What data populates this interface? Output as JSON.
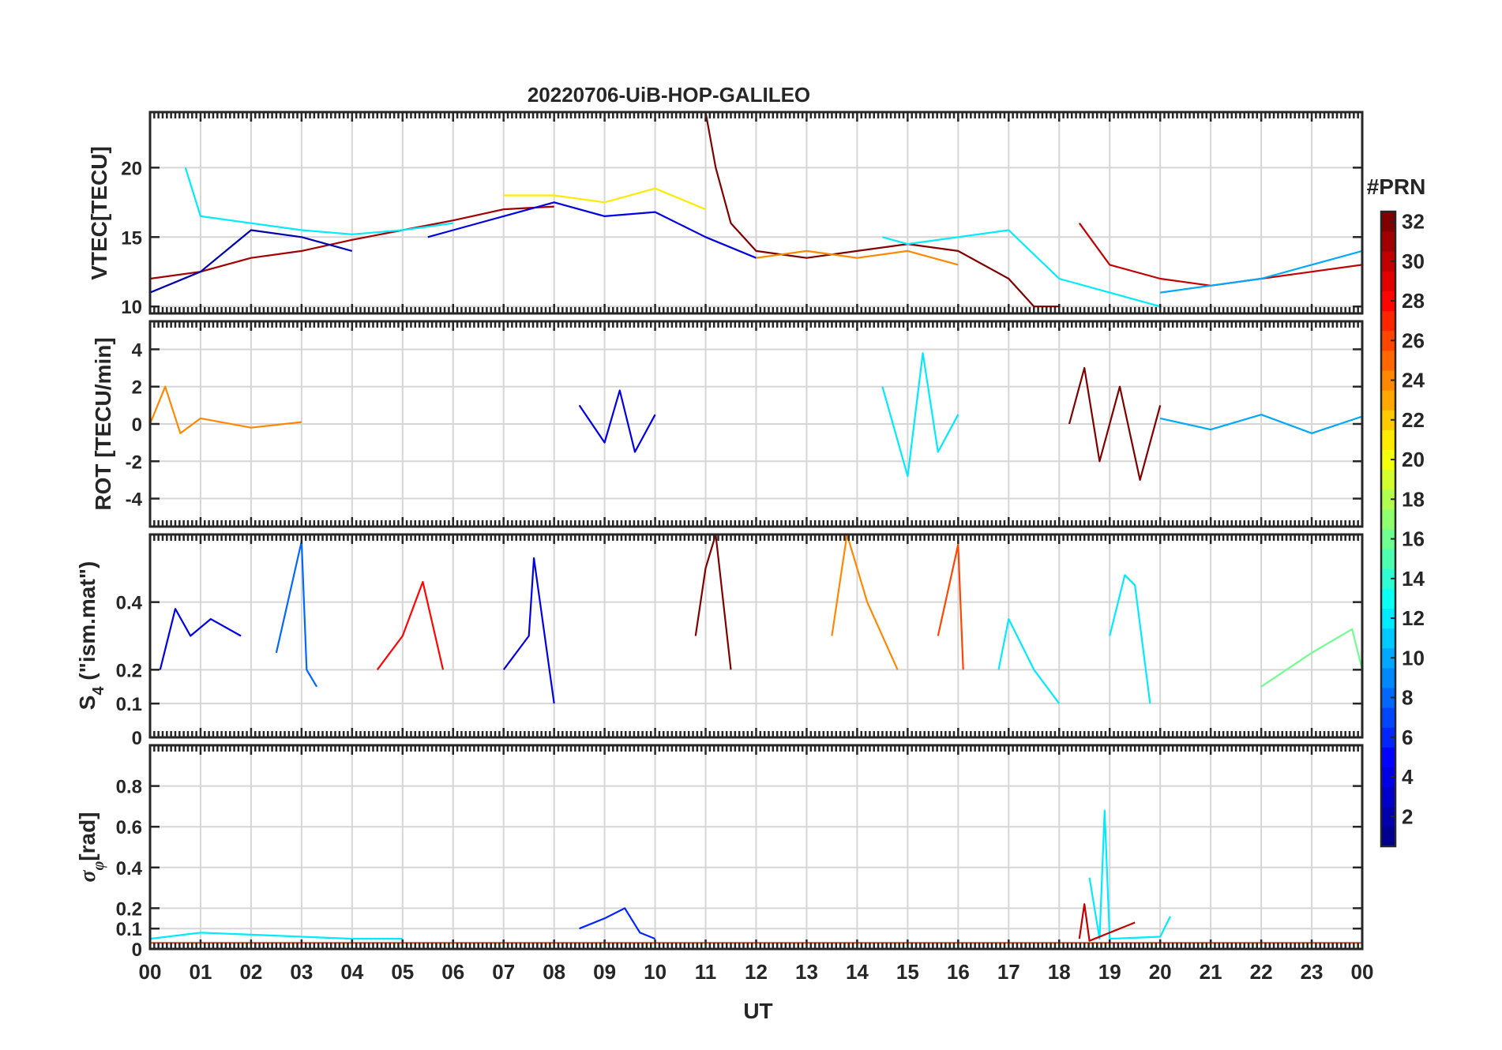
{
  "figure": {
    "title": "20220706-UiB-HOP-GALILEO",
    "xlabel": "UT",
    "x_tick_labels": [
      "00",
      "01",
      "02",
      "03",
      "04",
      "05",
      "06",
      "07",
      "08",
      "09",
      "10",
      "11",
      "12",
      "13",
      "14",
      "15",
      "16",
      "17",
      "18",
      "19",
      "20",
      "21",
      "22",
      "23",
      "00"
    ]
  },
  "colorbar": {
    "label": "#PRN",
    "range": [
      1,
      32
    ],
    "tick_labels": [
      "2",
      "4",
      "6",
      "8",
      "10",
      "12",
      "14",
      "16",
      "18",
      "20",
      "22",
      "24",
      "26",
      "28",
      "30",
      "32"
    ],
    "colormap": "jet",
    "colors": [
      "#00008f",
      "#0000ff",
      "#0080ff",
      "#00ffff",
      "#80ff80",
      "#ffff00",
      "#ff8000",
      "#ff0000",
      "#800000"
    ]
  },
  "chart_data": [
    {
      "type": "line",
      "panel": "vtec",
      "ylabel": "VTEC[TECU]",
      "xlim": [
        0,
        24
      ],
      "ylim": [
        9.5,
        24
      ],
      "yticks": [
        10,
        15,
        20
      ],
      "ytick_labels": [
        "10",
        "15",
        "20"
      ],
      "grid": true,
      "series": [
        {
          "prn": 31,
          "x": [
            0,
            1,
            2,
            3,
            4,
            5,
            6,
            7,
            8
          ],
          "y": [
            12,
            12.5,
            13.5,
            14,
            14.8,
            15.5,
            16.2,
            17,
            17.2
          ]
        },
        {
          "prn": 2,
          "x": [
            0,
            1,
            2,
            3,
            4
          ],
          "y": [
            11,
            12.5,
            15.5,
            15,
            14
          ]
        },
        {
          "prn": 12,
          "x": [
            0.7,
            1,
            2,
            3,
            4,
            5,
            6
          ],
          "y": [
            20,
            16.5,
            16,
            15.5,
            15.2,
            15.5,
            16
          ]
        },
        {
          "prn": 4,
          "x": [
            5.5,
            6,
            7,
            8,
            9,
            10,
            11,
            12
          ],
          "y": [
            15,
            15.5,
            16.5,
            17.5,
            16.5,
            16.8,
            15,
            13.5
          ]
        },
        {
          "prn": 21,
          "x": [
            7,
            8,
            9,
            10,
            11
          ],
          "y": [
            18,
            18,
            17.5,
            18.5,
            17
          ]
        },
        {
          "prn": 32,
          "x": [
            11,
            11.2,
            11.5,
            12,
            13,
            14,
            15,
            16,
            17,
            17.5,
            18
          ],
          "y": [
            24,
            20,
            16,
            14,
            13.5,
            14,
            14.5,
            14,
            12,
            10,
            10
          ]
        },
        {
          "prn": 24,
          "x": [
            12,
            13,
            14,
            15,
            16
          ],
          "y": [
            13.5,
            14,
            13.5,
            14,
            13
          ]
        },
        {
          "prn": 12,
          "x": [
            14.5,
            15,
            16,
            17,
            18,
            19,
            20
          ],
          "y": [
            15,
            14.5,
            15,
            15.5,
            12,
            11,
            10
          ]
        },
        {
          "prn": 30,
          "x": [
            18.4,
            19,
            20,
            21,
            22,
            23,
            24
          ],
          "y": [
            16,
            13,
            12,
            11.5,
            12,
            12.5,
            13
          ]
        },
        {
          "prn": 10,
          "x": [
            20,
            21,
            22,
            23,
            24
          ],
          "y": [
            11,
            11.5,
            12,
            13,
            14
          ]
        }
      ]
    },
    {
      "type": "line",
      "panel": "rot",
      "ylabel": "ROT [TECU/min]",
      "xlim": [
        0,
        24
      ],
      "ylim": [
        -5.5,
        5.5
      ],
      "yticks": [
        -4,
        -2,
        0,
        2,
        4
      ],
      "ytick_labels": [
        "-4",
        "-2",
        "0",
        "2",
        "4"
      ],
      "grid": true,
      "series": [
        {
          "prn": 24,
          "x": [
            0,
            0.3,
            0.6,
            1,
            2,
            3
          ],
          "y": [
            0,
            2,
            -0.5,
            0.3,
            -0.2,
            0.1
          ]
        },
        {
          "prn": 4,
          "x": [
            8.5,
            9,
            9.3,
            9.6,
            10
          ],
          "y": [
            1,
            -1,
            1.8,
            -1.5,
            0.5
          ]
        },
        {
          "prn": 12,
          "x": [
            14.5,
            15,
            15.3,
            15.6,
            16
          ],
          "y": [
            2,
            -2.8,
            3.8,
            -1.5,
            0.5
          ]
        },
        {
          "prn": 32,
          "x": [
            18.2,
            18.5,
            18.8,
            19.2,
            19.6,
            20
          ],
          "y": [
            0,
            3,
            -2,
            2,
            -3,
            1
          ]
        },
        {
          "prn": 10,
          "x": [
            20,
            21,
            22,
            23,
            24
          ],
          "y": [
            0.3,
            -0.3,
            0.5,
            -0.5,
            0.4
          ]
        }
      ]
    },
    {
      "type": "line",
      "panel": "s4",
      "ylabel": "S4 (\"ism.mat\")",
      "xlim": [
        0,
        24
      ],
      "ylim": [
        0,
        0.6
      ],
      "yticks": [
        0,
        0.1,
        0.2,
        0.4
      ],
      "ytick_labels": [
        "0",
        "0.1",
        "0.2",
        "0.4"
      ],
      "grid": true,
      "series": [
        {
          "prn": 4,
          "x": [
            0.2,
            0.5,
            0.8,
            1.2,
            1.8
          ],
          "y": [
            0.2,
            0.38,
            0.3,
            0.35,
            0.3
          ]
        },
        {
          "prn": 8,
          "x": [
            2.5,
            3,
            3.1,
            3.3
          ],
          "y": [
            0.25,
            0.58,
            0.2,
            0.15
          ]
        },
        {
          "prn": 28,
          "x": [
            4.5,
            5,
            5.4,
            5.8
          ],
          "y": [
            0.2,
            0.3,
            0.46,
            0.2
          ]
        },
        {
          "prn": 4,
          "x": [
            7,
            7.5,
            7.6,
            8
          ],
          "y": [
            0.2,
            0.3,
            0.53,
            0.1
          ]
        },
        {
          "prn": 32,
          "x": [
            10.8,
            11,
            11.2,
            11.5
          ],
          "y": [
            0.3,
            0.5,
            0.6,
            0.2
          ]
        },
        {
          "prn": 24,
          "x": [
            13.5,
            13.8,
            14.2,
            14.8
          ],
          "y": [
            0.3,
            0.6,
            0.4,
            0.2
          ]
        },
        {
          "prn": 26,
          "x": [
            15.6,
            16,
            16.1
          ],
          "y": [
            0.3,
            0.57,
            0.2
          ]
        },
        {
          "prn": 12,
          "x": [
            16.8,
            17,
            17.5,
            18
          ],
          "y": [
            0.2,
            0.35,
            0.2,
            0.1
          ]
        },
        {
          "prn": 12,
          "x": [
            19,
            19.3,
            19.5,
            19.8
          ],
          "y": [
            0.3,
            0.48,
            0.45,
            0.1
          ]
        },
        {
          "prn": 16,
          "x": [
            22,
            23,
            23.8,
            24
          ],
          "y": [
            0.15,
            0.25,
            0.32,
            0.2
          ]
        }
      ]
    },
    {
      "type": "line",
      "panel": "sigma_phi",
      "ylabel": "σφ[rad]",
      "xlim": [
        0,
        24
      ],
      "ylim": [
        0,
        1
      ],
      "yticks": [
        0,
        0.1,
        0.2,
        0.4,
        0.6,
        0.8
      ],
      "ytick_labels": [
        "0",
        "0.1",
        "0.2",
        "0.4",
        "0.6",
        "0.8"
      ],
      "grid": true,
      "series": [
        {
          "prn": 12,
          "x": [
            0,
            1,
            2,
            3,
            4,
            5
          ],
          "y": [
            0.05,
            0.08,
            0.07,
            0.06,
            0.05,
            0.05
          ]
        },
        {
          "prn": 6,
          "x": [
            8.5,
            9,
            9.4,
            9.7,
            10
          ],
          "y": [
            0.1,
            0.15,
            0.2,
            0.08,
            0.05
          ]
        },
        {
          "prn": 12,
          "x": [
            18.6,
            18.8,
            18.9,
            19,
            20,
            20.2
          ],
          "y": [
            0.35,
            0.05,
            0.68,
            0.05,
            0.06,
            0.16
          ]
        },
        {
          "prn": 30,
          "x": [
            18.4,
            18.5,
            18.6,
            19.5
          ],
          "y": [
            0.05,
            0.22,
            0.04,
            0.13
          ]
        },
        {
          "prn": 26,
          "x": [
            0,
            5,
            10,
            15,
            20,
            24
          ],
          "y": [
            0.03,
            0.03,
            0.03,
            0.03,
            0.03,
            0.03
          ]
        }
      ]
    }
  ]
}
